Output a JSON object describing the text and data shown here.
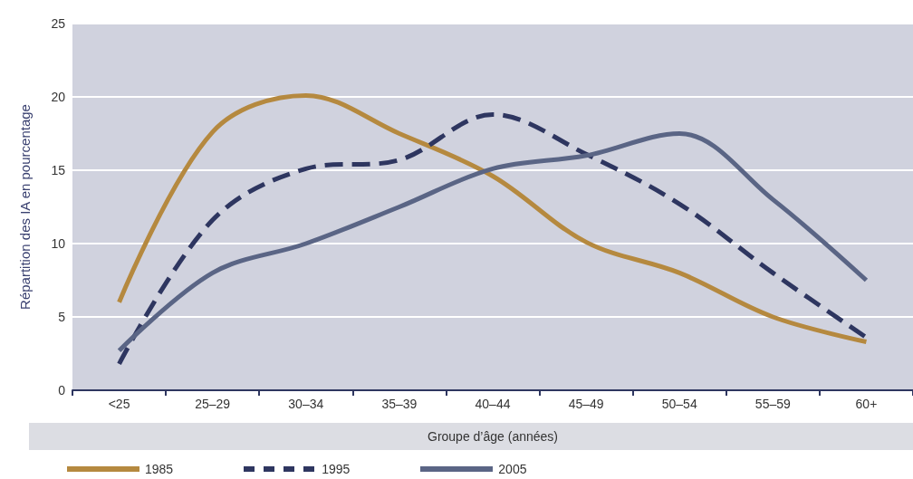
{
  "chart_data": {
    "type": "line",
    "xlabel": "Groupe d’âge (années)",
    "ylabel": "Répartition des IA en pourcentage",
    "categories": [
      "<25",
      "25–29",
      "30–34",
      "35–39",
      "40–44",
      "45–49",
      "50–54",
      "55–59",
      "60+"
    ],
    "series": [
      {
        "name": "1985",
        "color": "#b5893f",
        "line_style": "solid",
        "values": [
          6.0,
          17.6,
          20.1,
          17.5,
          14.6,
          10.1,
          8.0,
          5.0,
          3.3
        ]
      },
      {
        "name": "1995",
        "color": "#2e3660",
        "line_style": "dashed",
        "values": [
          1.8,
          11.6,
          15.1,
          15.7,
          18.8,
          16.1,
          12.7,
          8.0,
          3.6
        ]
      },
      {
        "name": "2005",
        "color": "#5a6585",
        "line_style": "solid",
        "values": [
          2.7,
          8.0,
          10.0,
          12.5,
          15.1,
          16.0,
          17.5,
          13.0,
          7.5
        ]
      }
    ],
    "ylim": [
      0,
      25
    ],
    "yticks": [
      0,
      5,
      10,
      15,
      20,
      25
    ],
    "grid": "y",
    "legend": "bottom",
    "marker": "none"
  }
}
